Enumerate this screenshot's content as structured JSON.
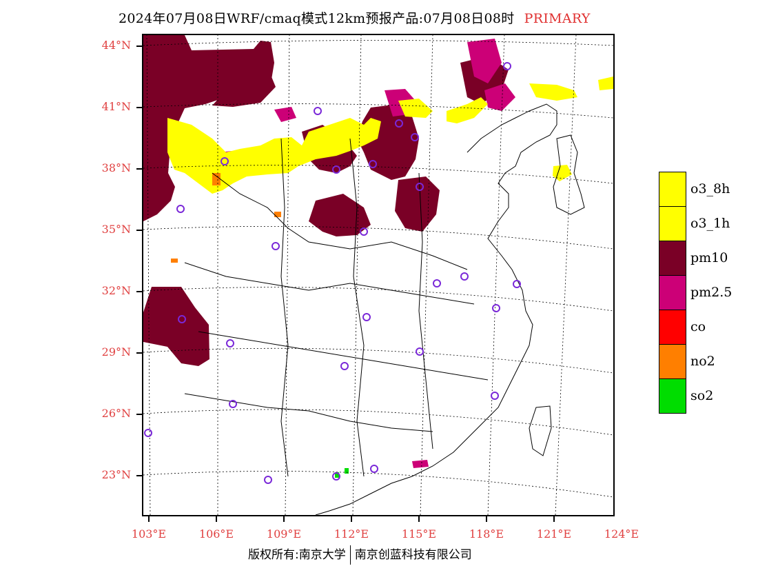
{
  "title": {
    "text": "2024年07月08日WRF/cmaq模式12km预报产品:07月08日08时",
    "tag": "PRIMARY"
  },
  "axes": {
    "lat_labels": [
      "44°N",
      "41°N",
      "38°N",
      "35°N",
      "32°N",
      "29°N",
      "26°N",
      "23°N"
    ],
    "lon_labels": [
      "103°E",
      "106°E",
      "109°E",
      "112°E",
      "115°E",
      "118°E",
      "121°E",
      "124°E"
    ],
    "label_color": "#e04040"
  },
  "legend": {
    "items": [
      {
        "label": "o3_8h",
        "color": "#ffff00"
      },
      {
        "label": "o3_1h",
        "color": "#ffff00"
      },
      {
        "label": "pm10",
        "color": "#7a0026"
      },
      {
        "label": "pm2.5",
        "color": "#cc0077"
      },
      {
        "label": "co",
        "color": "#ff0000"
      },
      {
        "label": "no2",
        "color": "#ff7f00"
      },
      {
        "label": "so2",
        "color": "#00dd00"
      }
    ]
  },
  "footer": {
    "left": "版权所有:南京大学",
    "right": "南京创蓝科技有限公司"
  },
  "colors": {
    "pm10": "#7a0026",
    "pm25": "#cc0077",
    "o3": "#ffff00",
    "no2": "#ff7f00",
    "so2": "#00dd00",
    "station_circle": "#7a28d8"
  }
}
